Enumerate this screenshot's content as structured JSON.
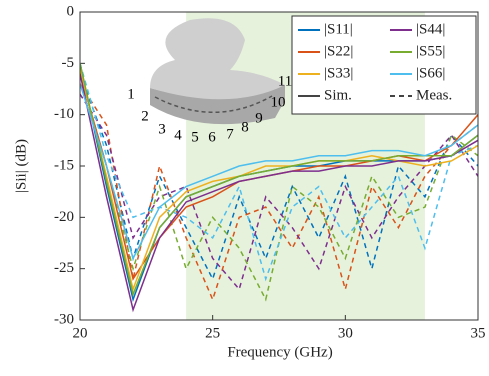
{
  "chart_data": {
    "type": "line",
    "x_label": "Frequency (GHz)",
    "y_label": "|Sii| (dB)",
    "x": [
      20,
      21,
      22,
      23,
      24,
      25,
      26,
      27,
      28,
      29,
      30,
      31,
      32,
      33,
      34,
      35
    ],
    "xlim": [
      20,
      35
    ],
    "xticks": [
      20,
      25,
      30,
      35
    ],
    "ylim": [
      -30,
      0
    ],
    "yticks": [
      0,
      -5,
      -10,
      -15,
      -20,
      -25,
      -30
    ],
    "shaded_band": [
      24,
      33
    ],
    "shade_color": "#e6f2dc",
    "styles": [
      {
        "name": "Sim.",
        "dash": "none"
      },
      {
        "name": "Meas.",
        "dash": "5 4"
      }
    ],
    "inset_labels": [
      "1",
      "2",
      "3",
      "4",
      "5",
      "6",
      "7",
      "8",
      "9",
      "10",
      "11"
    ],
    "series": [
      {
        "name": "|S11|",
        "color": "#0072bd",
        "values": [
          -5,
          -17,
          -28,
          -21,
          -18,
          -17,
          -16,
          -15.5,
          -15,
          -15,
          -14.5,
          -14.5,
          -14.5,
          -14.5,
          -14,
          -12
        ],
        "meas_values": [
          -6,
          -13,
          -24,
          -16,
          -21,
          -26,
          -18,
          -24,
          -17,
          -22,
          -16,
          -25,
          -15,
          -18,
          -12,
          -15
        ]
      },
      {
        "name": "|S22|",
        "color": "#d95319",
        "values": [
          -6,
          -15,
          -26,
          -22,
          -19,
          -18,
          -16.5,
          -16,
          -15.5,
          -15,
          -15,
          -14.5,
          -14,
          -14.5,
          -13,
          -10
        ],
        "meas_values": [
          -7,
          -11,
          -26,
          -15,
          -22,
          -28,
          -20,
          -19,
          -23,
          -18,
          -27,
          -17,
          -21,
          -16,
          -13,
          -11
        ]
      },
      {
        "name": "|S33|",
        "color": "#edb120",
        "values": [
          -5.5,
          -16,
          -27,
          -20,
          -17.5,
          -16.5,
          -16,
          -15,
          -15,
          -14.5,
          -14.5,
          -14,
          -14.5,
          -15,
          -14.5,
          -13
        ]
      },
      {
        "name": "|S44|",
        "color": "#7e2f8e",
        "values": [
          -6,
          -18,
          -29,
          -22,
          -18.5,
          -17.5,
          -16.5,
          -16,
          -15.5,
          -15.5,
          -15,
          -15,
          -14.5,
          -14.5,
          -14,
          -12.5
        ],
        "meas_values": [
          -8,
          -12,
          -22,
          -18,
          -17,
          -24,
          -27,
          -18,
          -21,
          -25,
          -17,
          -22,
          -18,
          -15,
          -12,
          -16
        ]
      },
      {
        "name": "|S55|",
        "color": "#77ac30",
        "values": [
          -5,
          -16.5,
          -27.5,
          -21,
          -18,
          -17,
          -16,
          -15.5,
          -15,
          -14.5,
          -14.5,
          -14.5,
          -14,
          -14,
          -14,
          -12
        ],
        "meas_values": [
          -6,
          -15,
          -25,
          -17,
          -25,
          -20,
          -23,
          -28,
          -17,
          -19,
          -24,
          -16,
          -20,
          -19,
          -12,
          -14
        ]
      },
      {
        "name": "|S66|",
        "color": "#4dbeee",
        "values": [
          -7,
          -15,
          -24,
          -19,
          -17,
          -16,
          -15,
          -14.5,
          -14.5,
          -14,
          -14,
          -13.5,
          -13.5,
          -14,
          -13,
          -11
        ],
        "meas_values": [
          -5,
          -14,
          -20,
          -19,
          -20,
          -22,
          -17,
          -26,
          -19,
          -17,
          -22,
          -19,
          -16,
          -23,
          -14,
          -13
        ]
      }
    ]
  }
}
